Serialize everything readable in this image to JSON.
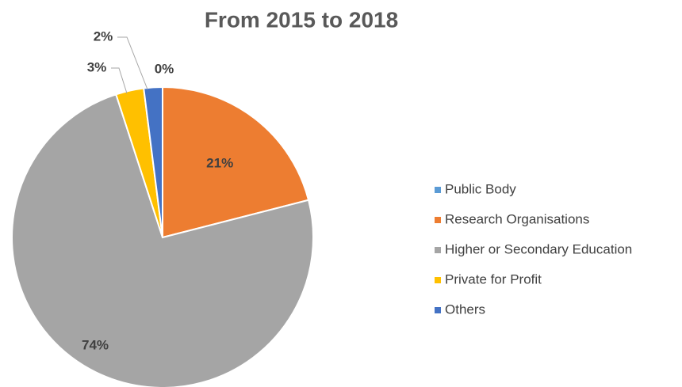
{
  "chart_data": {
    "type": "pie",
    "title": "From 2015 to 2018",
    "categories": [
      "Public Body",
      "Research Organisations",
      "Higher or Secondary Education",
      "Private for Profit",
      "Others"
    ],
    "values": [
      0,
      21,
      74,
      3,
      2
    ],
    "value_labels": [
      "0%",
      "21%",
      "74%",
      "3%",
      "2%"
    ],
    "colors": [
      "#5b9bd5",
      "#ed7d31",
      "#a5a5a5",
      "#ffc000",
      "#4472c4"
    ],
    "legend": "right"
  }
}
